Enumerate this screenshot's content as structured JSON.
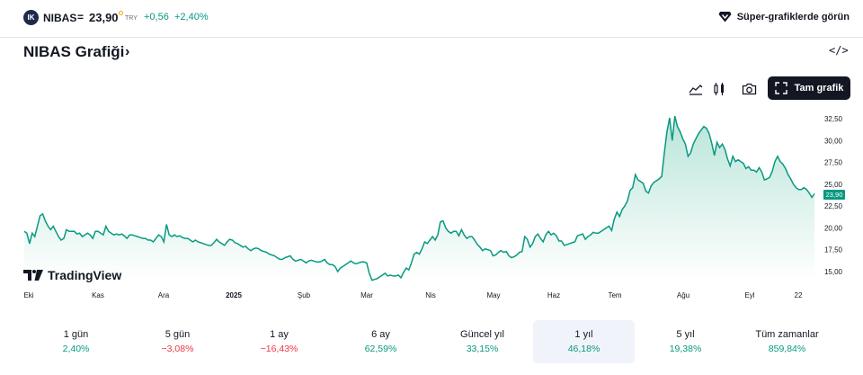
{
  "header": {
    "logo_text": "IK",
    "symbol": "NIBAS",
    "separator": "=",
    "price": "23,90",
    "currency": "TRY",
    "change": "+0,56",
    "change_percent": "+2,40%",
    "super_charts_label": "Süper-grafiklerde görün"
  },
  "title": {
    "text": "NIBAS Grafiği",
    "arrow": "›"
  },
  "embed_label": "</>",
  "toolbar": {
    "full_chart_label": "Tam grafik",
    "icons": [
      "area-chart-icon",
      "candles-icon",
      "camera-icon",
      "fullscreen-icon"
    ]
  },
  "watermark": "TradingView",
  "last_price_tag": "23,90",
  "colors": {
    "line": "#089981",
    "fill_top": "#b9e5d9",
    "fill_bottom": "#ffffff",
    "positive": "#089981",
    "negative": "#f23645"
  },
  "chart_data": {
    "type": "area",
    "title": "",
    "xlabel": "",
    "ylabel": "",
    "ylim": [
      13.5,
      33.5
    ],
    "x_tick_labels": [
      "Eki",
      "Kas",
      "Ara",
      "2025",
      "Şub",
      "Mar",
      "Nis",
      "May",
      "Haz",
      "Tem",
      "Ağu",
      "Eyl",
      "22"
    ],
    "y_tick_labels": [
      "32,50",
      "30,00",
      "27,50",
      "25,00",
      "22,50",
      "20,00",
      "17,50",
      "15,00"
    ],
    "y_tick_values": [
      32.5,
      30.0,
      27.5,
      25.0,
      22.5,
      20.0,
      17.5,
      15.0
    ],
    "series": [
      {
        "values": [
          19.6,
          19.4,
          18.2,
          19.4,
          19.0,
          20.2,
          21.4,
          21.6,
          20.8,
          20.2,
          19.8,
          20.2,
          19.6,
          19.0,
          18.6,
          18.8,
          19.8,
          19.6,
          19.6,
          19.6,
          19.3,
          19.4,
          19.0,
          19.2,
          19.4,
          19.2,
          18.8,
          19.6,
          19.6,
          19.4,
          19.2,
          20.2,
          19.6,
          19.4,
          19.2,
          19.3,
          19.2,
          19.3,
          19.1,
          18.8,
          19.2,
          19.2,
          19.1,
          19.0,
          18.9,
          18.8,
          18.8,
          18.6,
          18.6,
          18.4,
          18.8,
          19.2,
          19.0,
          18.4,
          20.4,
          19.2,
          19.0,
          19.2,
          19.0,
          19.1,
          18.9,
          18.8,
          18.8,
          18.6,
          18.4,
          18.6,
          18.4,
          18.3,
          18.2,
          18.1,
          18.0,
          18.0,
          18.3,
          18.7,
          18.4,
          18.2,
          18.0,
          18.4,
          18.7,
          18.6,
          18.3,
          18.2,
          18.0,
          17.8,
          17.9,
          17.6,
          17.4,
          17.6,
          17.7,
          17.6,
          17.4,
          17.3,
          17.2,
          17.0,
          16.9,
          16.8,
          16.6,
          16.4,
          16.4,
          16.6,
          16.7,
          16.8,
          16.4,
          16.2,
          16.3,
          16.4,
          16.2,
          16.0,
          16.2,
          16.3,
          16.2,
          16.1,
          16.1,
          16.2,
          16.4,
          16.0,
          15.8,
          15.8,
          15.6,
          15.0,
          15.4,
          15.6,
          15.8,
          16.0,
          16.2,
          16.0,
          15.9,
          16.0,
          16.1,
          16.1,
          16.0,
          14.8,
          14.0,
          14.1,
          14.2,
          14.4,
          14.6,
          14.8,
          14.5,
          14.6,
          14.5,
          14.5,
          14.6,
          14.3,
          14.9,
          15.4,
          15.2,
          16.0,
          17.0,
          17.2,
          17.0,
          17.6,
          18.4,
          18.2,
          18.6,
          19.0,
          18.6,
          19.2,
          20.7,
          20.8,
          20.0,
          19.6,
          19.4,
          19.6,
          19.6,
          19.1,
          19.8,
          19.2,
          18.8,
          19.0,
          19.0,
          18.6,
          18.1,
          17.8,
          17.4,
          17.6,
          17.5,
          17.4,
          16.8,
          16.9,
          17.2,
          17.4,
          17.2,
          17.3,
          16.8,
          16.6,
          16.7,
          16.9,
          17.2,
          17.3,
          19.0,
          18.7,
          17.8,
          18.2,
          19.0,
          19.3,
          18.8,
          18.4,
          19.2,
          19.6,
          19.2,
          19.4,
          19.1,
          18.5,
          18.5,
          18.0,
          18.1,
          18.2,
          18.3,
          18.4,
          19.1,
          19.2,
          19.3,
          18.7,
          19.0,
          19.2,
          19.5,
          19.4,
          19.4,
          19.6,
          19.8,
          20.0,
          20.2,
          19.7,
          21.0,
          21.8,
          21.3,
          22.1,
          22.5,
          23.1,
          24.3,
          24.6,
          26.1,
          25.5,
          25.3,
          25.1,
          24.2,
          24.0,
          24.8,
          25.2,
          25.4,
          25.6,
          25.9,
          28.6,
          31.0,
          32.6,
          30.0,
          32.8,
          31.6,
          31.0,
          30.2,
          29.6,
          28.2,
          28.6,
          29.6,
          30.2,
          30.8,
          31.2,
          31.6,
          31.4,
          30.8,
          29.7,
          28.3,
          29.8,
          29.2,
          29.6,
          29.0,
          27.9,
          27.1,
          28.2,
          27.6,
          27.8,
          27.6,
          27.4,
          26.8,
          27.0,
          26.6,
          26.6,
          26.4,
          26.9,
          26.4,
          25.5,
          25.6,
          25.8,
          26.5,
          27.6,
          28.2,
          27.6,
          27.3,
          26.8,
          26.1,
          25.6,
          25.0,
          24.6,
          24.4,
          24.4,
          24.6,
          24.4,
          24.0,
          23.5,
          23.9
        ]
      }
    ]
  },
  "periods": [
    {
      "label": "1 gün",
      "value": "2,40%",
      "sign": "pos",
      "active": false
    },
    {
      "label": "5 gün",
      "value": "−3,08%",
      "sign": "neg",
      "active": false
    },
    {
      "label": "1 ay",
      "value": "−16,43%",
      "sign": "neg",
      "active": false
    },
    {
      "label": "6 ay",
      "value": "62,59%",
      "sign": "pos",
      "active": false
    },
    {
      "label": "Güncel yıl",
      "value": "33,15%",
      "sign": "pos",
      "active": false
    },
    {
      "label": "1 yıl",
      "value": "46,18%",
      "sign": "pos",
      "active": true
    },
    {
      "label": "5 yıl",
      "value": "19,38%",
      "sign": "pos",
      "active": false
    },
    {
      "label": "Tüm zamanlar",
      "value": "859,84%",
      "sign": "pos",
      "active": false
    }
  ]
}
